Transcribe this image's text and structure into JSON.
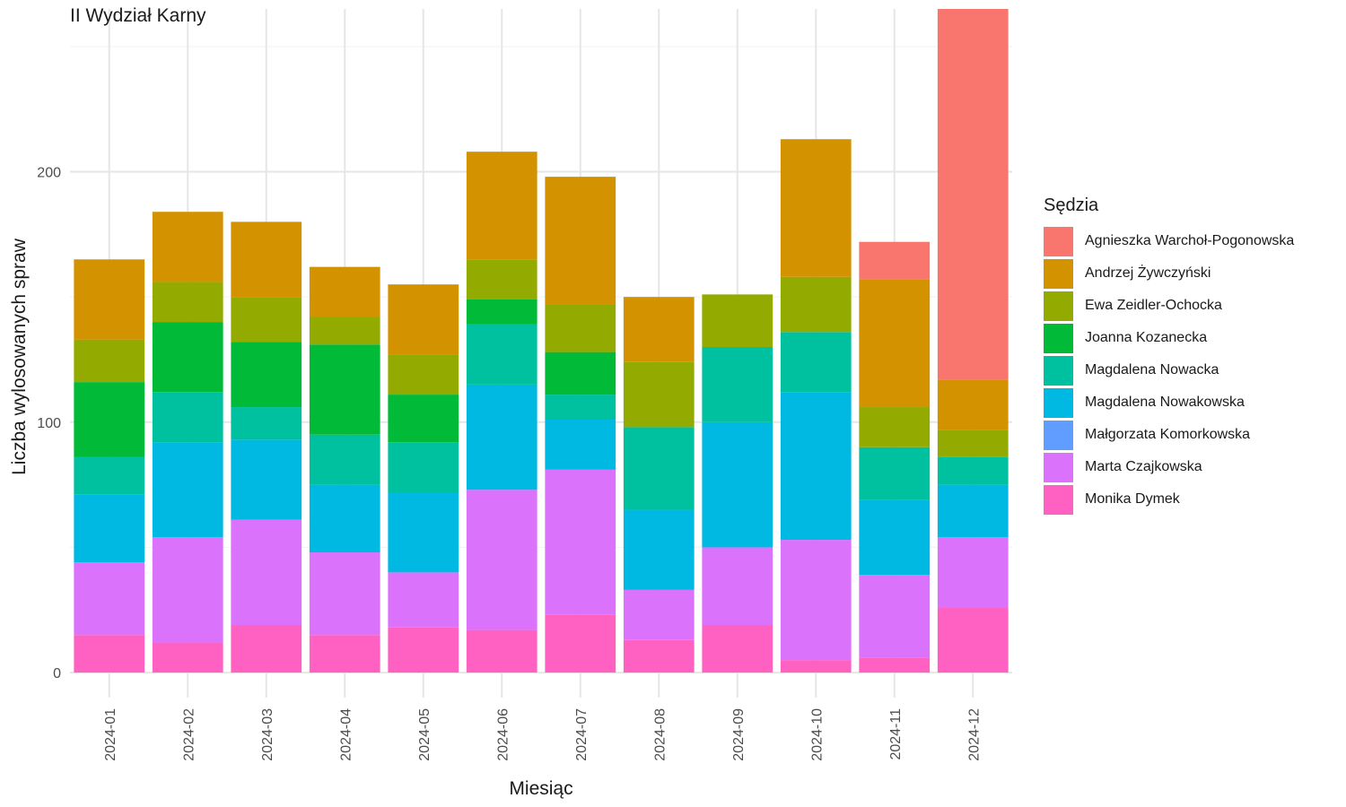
{
  "chart_data": {
    "type": "bar",
    "stacked": true,
    "title": "II Wydział Karny",
    "xlabel": "Miesiąc",
    "ylabel": "Liczba wylosowanych spraw",
    "ylim": [
      -10,
      265
    ],
    "yticks": [
      0,
      100,
      200
    ],
    "grid": true,
    "legend_placement": "right",
    "legend_title": "Sędzia",
    "categories": [
      "2024-01",
      "2024-02",
      "2024-03",
      "2024-04",
      "2024-05",
      "2024-06",
      "2024-07",
      "2024-08",
      "2024-09",
      "2024-10",
      "2024-11",
      "2024-12"
    ],
    "series": [
      {
        "name": "Agnieszka Warchoł-Pogonowska",
        "color": "#F8766D",
        "values": [
          0,
          0,
          0,
          0,
          0,
          0,
          0,
          0,
          0,
          0,
          15,
          148
        ]
      },
      {
        "name": "Andrzej Żywczyński",
        "color": "#D39200",
        "values": [
          32,
          28,
          30,
          20,
          28,
          43,
          51,
          26,
          0,
          55,
          51,
          20
        ]
      },
      {
        "name": "Ewa Zeidler-Ochocka",
        "color": "#93AA00",
        "values": [
          17,
          16,
          18,
          11,
          16,
          16,
          19,
          26,
          21,
          22,
          16,
          11
        ]
      },
      {
        "name": "Joanna Kozanecka",
        "color": "#00BA38",
        "values": [
          30,
          28,
          26,
          36,
          19,
          10,
          17,
          0,
          0,
          0,
          0,
          0
        ]
      },
      {
        "name": "Magdalena Nowacka",
        "color": "#00C19F",
        "values": [
          15,
          20,
          13,
          20,
          20,
          24,
          10,
          33,
          30,
          24,
          21,
          11
        ]
      },
      {
        "name": "Magdalena Nowakowska",
        "color": "#00B9E3",
        "values": [
          27,
          38,
          32,
          27,
          32,
          42,
          20,
          32,
          50,
          59,
          30,
          21
        ]
      },
      {
        "name": "Małgorzata Komorkowska",
        "color": "#619CFF",
        "values": [
          0,
          0,
          0,
          0,
          0,
          0,
          0,
          0,
          0,
          0,
          0,
          0
        ]
      },
      {
        "name": "Marta Czajkowska",
        "color": "#DB72FB",
        "values": [
          29,
          42,
          42,
          33,
          22,
          56,
          58,
          20,
          31,
          48,
          33,
          28
        ]
      },
      {
        "name": "Monika Dymek",
        "color": "#FF61C3",
        "values": [
          15,
          12,
          19,
          15,
          18,
          17,
          23,
          13,
          19,
          5,
          6,
          26
        ]
      }
    ]
  }
}
